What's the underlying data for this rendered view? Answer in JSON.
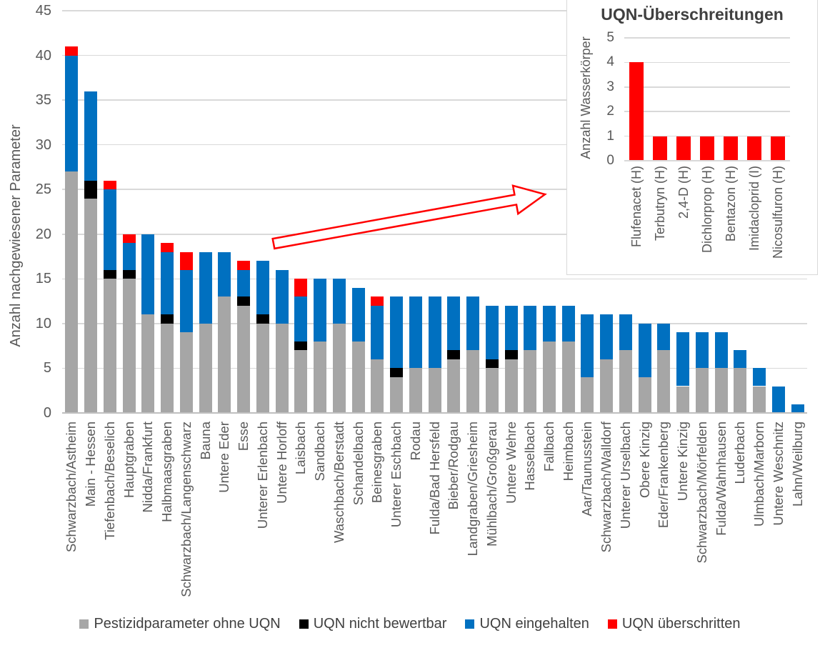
{
  "colors": {
    "no_uqn_gray": "#a6a6a6",
    "not_assessable_black": "#000000",
    "uqn_met_blue": "#0070c0",
    "uqn_exceeded_red": "#ff0000",
    "gridline": "#d9d9d9",
    "axis_line": "#bfbfbf",
    "tick_text": "#595959",
    "legend_text": "#404040",
    "callout_arrow": "#ff0000"
  },
  "chart_data": [
    {
      "type": "bar",
      "stacked": true,
      "title": "",
      "xlabel": "",
      "ylabel": "Anzahl nachgewiesener Parameter",
      "ylim": [
        0,
        45
      ],
      "ytick_step": 5,
      "grid": true,
      "legend_position": "bottom",
      "categories": [
        "Schwarzbach/Astheim",
        "Main - Hessen",
        "Tiefenbach/Beselich",
        "Hauptgraben",
        "Nidda/Frankfurt",
        "Halbmaasgraben",
        "Schwarzbach/Langenschwarz",
        "Bauna",
        "Untere Eder",
        "Esse",
        "Unterer Erlenbach",
        "Untere Horloff",
        "Laisbach",
        "Sandbach",
        "Waschbach/Berstadt",
        "Schandelbach",
        "Beinesgraben",
        "Unterer Eschbach",
        "Rodau",
        "Fulda/Bad Hersfeld",
        "Bieber/Rodgau",
        "Landgraben/Griesheim",
        "Mühlbach/Großgerau",
        "Untere Wehre",
        "Hasselbach",
        "Fallbach",
        "Heimbach",
        "Aar/Taunusstein",
        "Schwarzbach/Walldorf",
        "Unterer Urselbach",
        "Obere Kinzig",
        "Eder/Frankenberg",
        "Untere Kinzig",
        "Schwarzbach/Mörfelden",
        "Fulda/Wahnhausen",
        "Luderbach",
        "Ulmbach/Marborn",
        "Untere Weschnitz",
        "Lahn/Weilburg"
      ],
      "series": [
        {
          "name": "Pestizidparameter ohne UQN",
          "color": "#a6a6a6",
          "values": [
            27,
            24,
            15,
            15,
            11,
            10,
            9,
            10,
            13,
            12,
            10,
            10,
            7,
            8,
            10,
            8,
            6,
            4,
            5,
            5,
            6,
            7,
            5,
            6,
            7,
            8,
            8,
            4,
            6,
            7,
            4,
            7,
            3,
            5,
            5,
            5,
            3,
            0,
            0
          ]
        },
        {
          "name": "UQN nicht bewertbar",
          "color": "#000000",
          "values": [
            0,
            2,
            1,
            1,
            0,
            1,
            0,
            0,
            0,
            1,
            1,
            0,
            1,
            0,
            0,
            0,
            0,
            1,
            0,
            0,
            1,
            0,
            1,
            1,
            0,
            0,
            0,
            0,
            0,
            0,
            0,
            0,
            0,
            0,
            0,
            0,
            0,
            0,
            0
          ]
        },
        {
          "name": "UQN eingehalten",
          "color": "#0070c0",
          "values": [
            13,
            10,
            9,
            3,
            9,
            7,
            7,
            8,
            5,
            3,
            6,
            6,
            5,
            7,
            5,
            6,
            6,
            8,
            8,
            8,
            6,
            6,
            6,
            5,
            5,
            4,
            4,
            7,
            5,
            4,
            6,
            3,
            6,
            4,
            4,
            2,
            2,
            3,
            1
          ]
        },
        {
          "name": "UQN überschritten",
          "color": "#ff0000",
          "values": [
            1,
            0,
            1,
            1,
            0,
            1,
            2,
            0,
            0,
            1,
            0,
            0,
            2,
            0,
            0,
            0,
            1,
            0,
            0,
            0,
            0,
            0,
            0,
            0,
            0,
            0,
            0,
            0,
            0,
            0,
            0,
            0,
            0,
            0,
            0,
            0,
            0,
            0,
            0
          ]
        }
      ]
    },
    {
      "type": "bar",
      "stacked": false,
      "title": "UQN-Überschreitungen",
      "xlabel": "",
      "ylabel": "Anzahl Wasserkörper",
      "ylim": [
        0,
        5
      ],
      "ytick_step": 1,
      "grid": true,
      "bar_color": "#ff0000",
      "categories": [
        "Flufenacet (H)",
        "Terbutryn (H)",
        "2,4-D (H)",
        "Dichlorprop (H)",
        "Bentazon (H)",
        "Imidacloprid (I)",
        "Nicosulfuron (H)"
      ],
      "values": [
        4,
        1,
        1,
        1,
        1,
        1,
        1
      ]
    }
  ],
  "legend": {
    "items": [
      {
        "label": "Pestizidparameter ohne UQN",
        "color": "#a6a6a6"
      },
      {
        "label": "UQN nicht bewertbar",
        "color": "#000000"
      },
      {
        "label": "UQN eingehalten",
        "color": "#0070c0"
      },
      {
        "label": "UQN überschritten",
        "color": "#ff0000"
      }
    ]
  }
}
